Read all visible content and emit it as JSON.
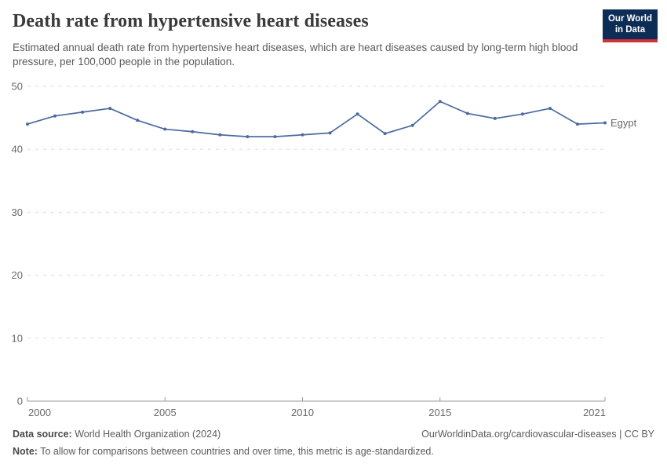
{
  "header": {
    "title": "Death rate from hypertensive heart diseases",
    "subtitle": "Estimated annual death rate from hypertensive heart diseases, which are heart diseases caused by long-term high blood pressure, per 100,000 people in the population.",
    "logo": {
      "line1": "Our World",
      "line2": "in Data",
      "bg_color": "#0d2d57",
      "accent_color": "#ce3138"
    }
  },
  "chart_data": {
    "type": "line",
    "x": [
      2000,
      2001,
      2002,
      2003,
      2004,
      2005,
      2006,
      2007,
      2008,
      2009,
      2010,
      2011,
      2012,
      2013,
      2014,
      2015,
      2016,
      2017,
      2018,
      2019,
      2020,
      2021
    ],
    "series": [
      {
        "name": "Egypt",
        "color": "#4c6aa0",
        "values": [
          44.0,
          45.3,
          45.9,
          46.5,
          44.6,
          43.2,
          42.8,
          42.3,
          42.0,
          42.0,
          42.3,
          42.6,
          45.6,
          42.5,
          43.8,
          47.6,
          45.7,
          44.9,
          45.6,
          46.5,
          44.0,
          44.2
        ]
      }
    ],
    "title": "Death rate from hypertensive heart diseases",
    "xlabel": "",
    "ylabel": "",
    "xlim": [
      2000,
      2021
    ],
    "ylim": [
      0,
      50
    ],
    "x_ticks": [
      2000,
      2005,
      2010,
      2015,
      2021
    ],
    "y_ticks": [
      0,
      10,
      20,
      30,
      40,
      50
    ],
    "grid": "horizontal-dashed",
    "legend_position": "end-of-line",
    "colors": {
      "grid_line": "#dcdcdc",
      "axis_line": "#999999",
      "tick_label": "#696969"
    }
  },
  "footer": {
    "data_source_label": "Data source:",
    "data_source_value": "World Health Organization (2024)",
    "attribution": "OurWorldinData.org/cardiovascular-diseases | CC BY",
    "note_label": "Note:",
    "note_value": "To allow for comparisons between countries and over time, this metric is age-standardized."
  }
}
